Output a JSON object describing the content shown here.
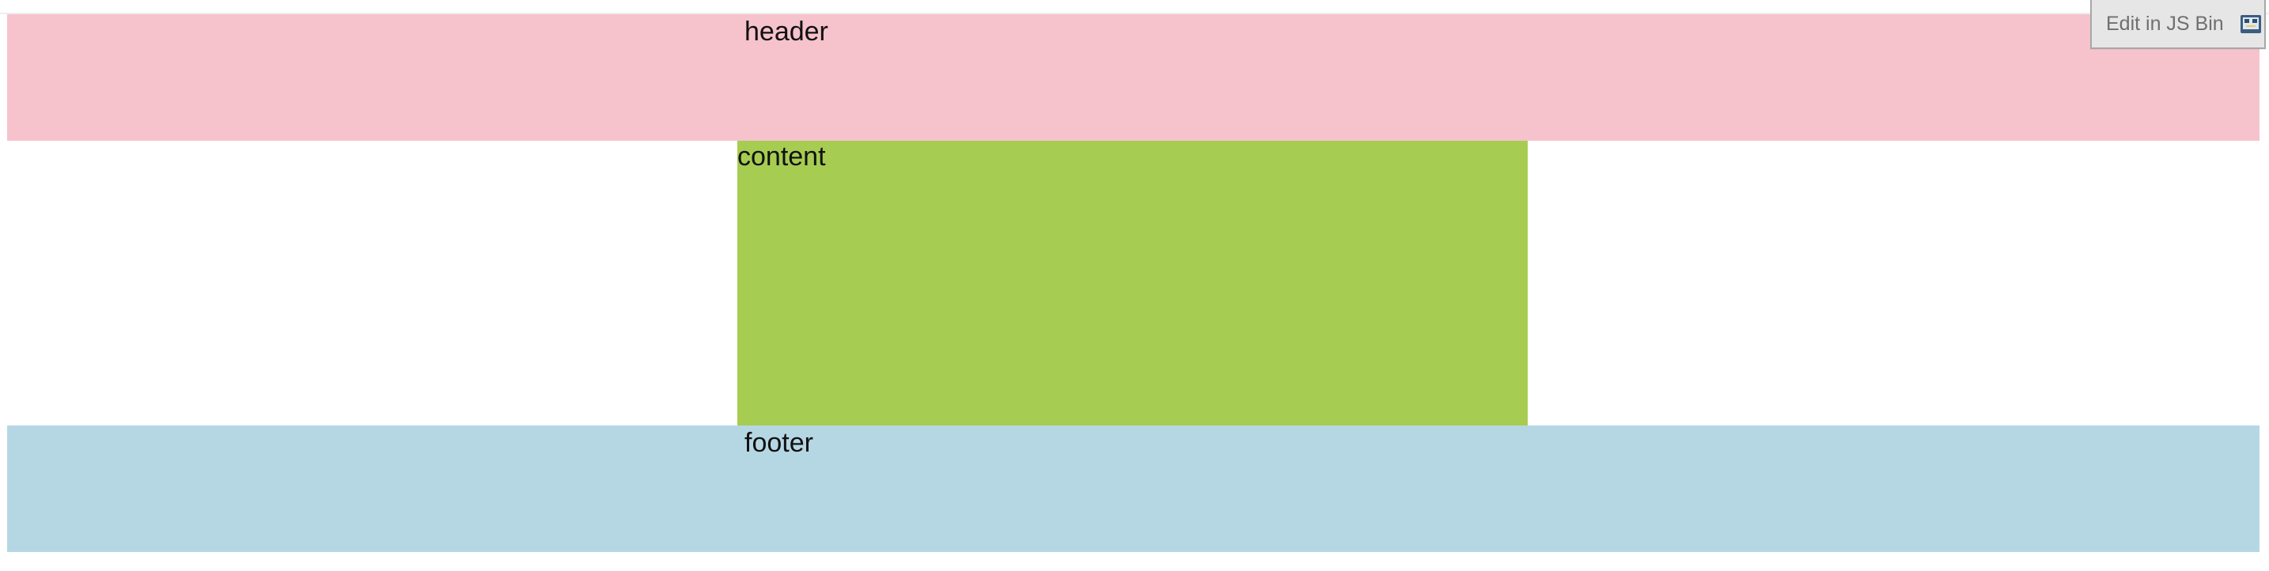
{
  "theme": {
    "header_bg": "#f6c3cd",
    "content_bg": "#a6cc52",
    "footer_bg": "#b5d7e3"
  },
  "sections": {
    "header_label": "header",
    "content_label": "content",
    "footer_label": "footer"
  },
  "toolbar": {
    "edit_label": "Edit in JS Bin",
    "icon_name": "jsbin-icon"
  }
}
